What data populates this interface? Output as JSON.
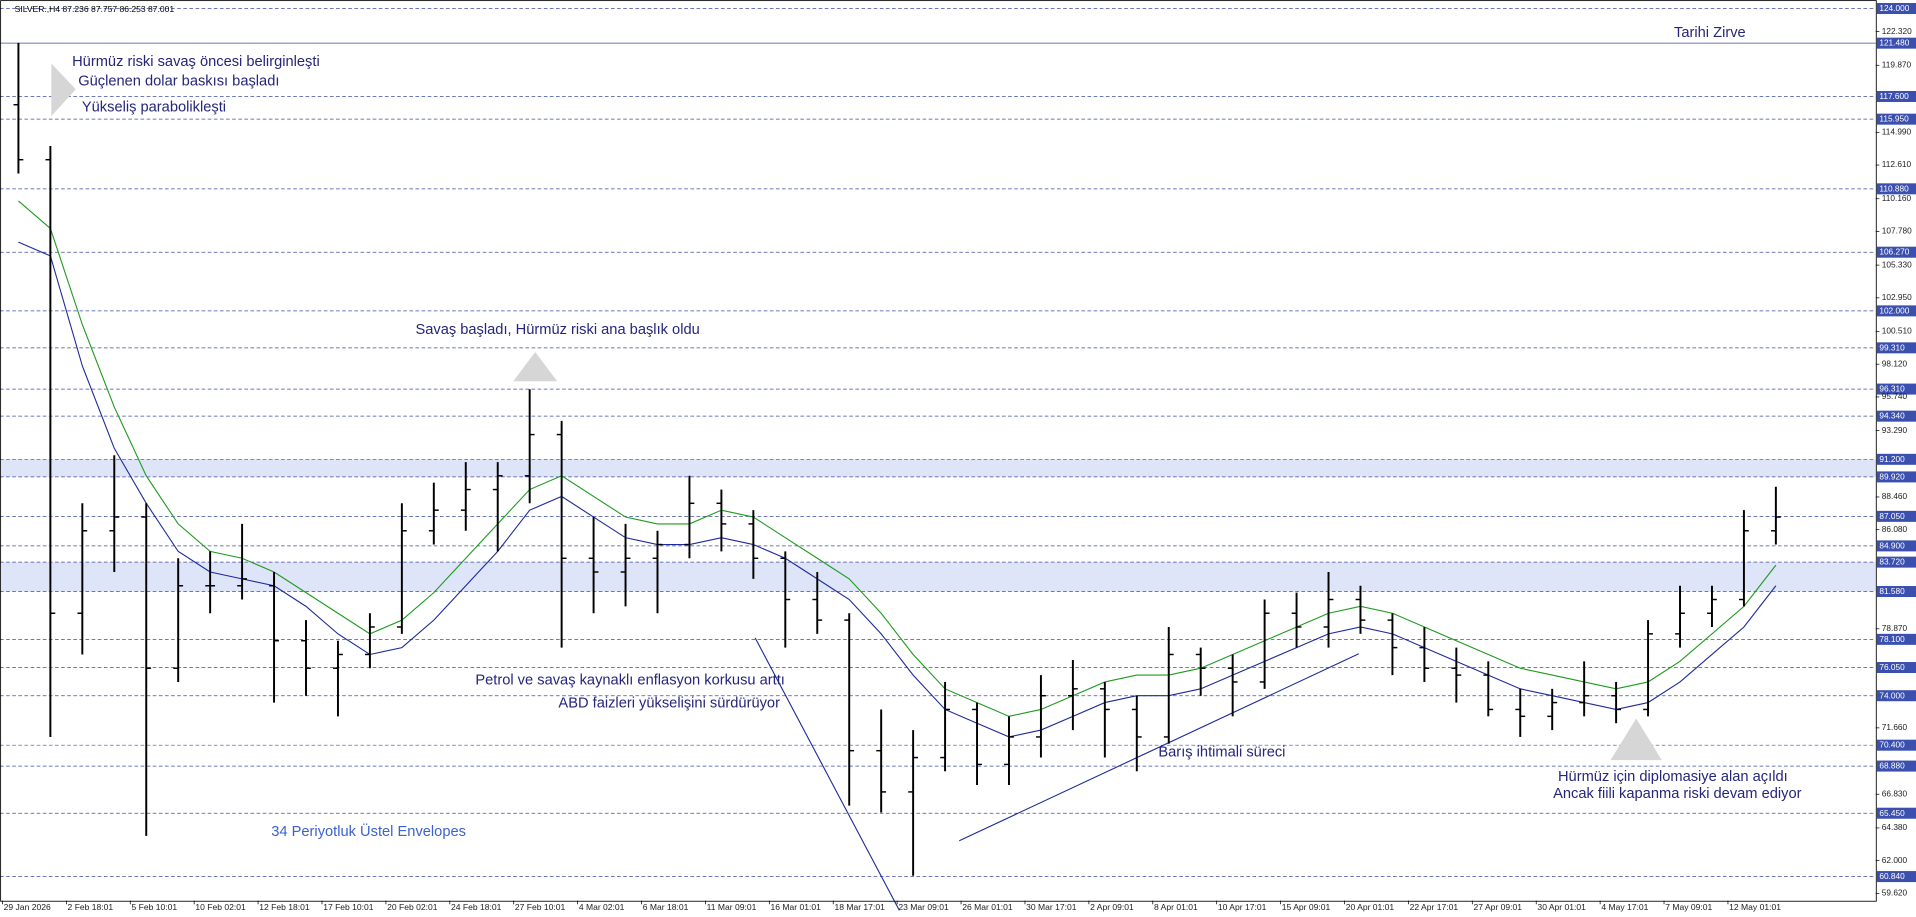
{
  "chart_data": {
    "type": "ohlc",
    "header": "SILVER.,H4  87.236 87.757 86.253 87.001",
    "ylim": [
      59.09,
      124.62
    ],
    "yticks": [
      {
        "value": 122.32,
        "label": "122.320"
      },
      {
        "value": 119.87,
        "label": "119.870"
      },
      {
        "value": 114.99,
        "label": "114.990"
      },
      {
        "value": 112.61,
        "label": "112.610"
      },
      {
        "value": 110.16,
        "label": "110.160"
      },
      {
        "value": 107.78,
        "label": "107.780"
      },
      {
        "value": 105.33,
        "label": "105.330"
      },
      {
        "value": 102.95,
        "label": "102.950"
      },
      {
        "value": 100.51,
        "label": "100.510"
      },
      {
        "value": 98.12,
        "label": "98.120"
      },
      {
        "value": 95.74,
        "label": "95.740"
      },
      {
        "value": 93.29,
        "label": "93.290"
      },
      {
        "value": 88.46,
        "label": "88.460"
      },
      {
        "value": 86.08,
        "label": "86.080"
      },
      {
        "value": 78.87,
        "label": "78.870"
      },
      {
        "value": 71.66,
        "label": "71.660"
      },
      {
        "value": 66.83,
        "label": "66.830"
      },
      {
        "value": 64.38,
        "label": "64.380"
      },
      {
        "value": 62,
        "label": "62.000"
      },
      {
        "value": 59.62,
        "label": "59.620"
      }
    ],
    "levels": [
      {
        "value": 124,
        "label": "124.000"
      },
      {
        "value": 121.48,
        "label": "121.480",
        "line": "solid"
      },
      {
        "value": 117.6,
        "label": "117.600"
      },
      {
        "value": 115.95,
        "label": "115.950"
      },
      {
        "value": 110.88,
        "label": "110.880"
      },
      {
        "value": 106.27,
        "label": "106.270"
      },
      {
        "value": 102,
        "label": "102.000"
      },
      {
        "value": 99.31,
        "label": "99.310"
      },
      {
        "value": 96.31,
        "label": "96.310"
      },
      {
        "value": 94.34,
        "label": "94.340"
      },
      {
        "value": 91.2,
        "label": "91.200"
      },
      {
        "value": 89.92,
        "label": "89.920"
      },
      {
        "value": 87.05,
        "label": "87.050"
      },
      {
        "value": 84.9,
        "label": "84.900"
      },
      {
        "value": 83.72,
        "label": "83.720"
      },
      {
        "value": 81.58,
        "label": "81.580"
      },
      {
        "value": 78.1,
        "label": "78.100"
      },
      {
        "value": 76.05,
        "label": "76.050"
      },
      {
        "value": 74,
        "label": "74.000"
      },
      {
        "value": 70.4,
        "label": "70.400"
      },
      {
        "value": 68.88,
        "label": "68.880"
      },
      {
        "value": 65.45,
        "label": "65.450"
      },
      {
        "value": 60.84,
        "label": "60.840"
      }
    ],
    "zones": [
      {
        "from": 89.92,
        "to": 91.2
      },
      {
        "from": 81.58,
        "to": 83.72
      }
    ],
    "x_labels": [
      "29 Jan 2026",
      "2 Feb 18:01",
      "5 Feb 10:01",
      "10 Feb 02:01",
      "12 Feb 18:01",
      "17 Feb 10:01",
      "20 Feb 02:01",
      "24 Feb 18:01",
      "27 Feb 10:01",
      "4 Mar 02:01",
      "6 Mar 18:01",
      "11 Mar 09:01",
      "16 Mar 01:01",
      "18 Mar 17:01",
      "23 Mar 09:01",
      "26 Mar 01:01",
      "30 Mar 17:01",
      "2 Apr 09:01",
      "8 Apr 01:01",
      "10 Apr 17:01",
      "15 Apr 09:01",
      "20 Apr 01:01",
      "22 Apr 17:01",
      "27 Apr 09:01",
      "30 Apr 01:01",
      "4 May 17:01",
      "7 May 09:01",
      "12 May 01:01"
    ],
    "color": "#000000",
    "open": [
      117,
      113,
      80,
      86,
      87,
      76,
      82,
      82,
      82,
      78,
      76,
      77,
      79,
      86,
      87.5,
      89,
      90,
      93,
      84,
      83,
      84,
      85,
      88,
      86.5,
      84,
      81,
      79.5,
      70,
      67,
      69.5,
      73,
      69,
      71,
      74,
      74.5,
      73,
      71,
      77,
      76,
      75,
      80,
      79,
      81,
      79.5,
      77.5,
      76,
      75.5,
      73,
      72.5,
      73.5,
      74,
      73,
      78.5,
      80,
      81,
      86
    ],
    "high": [
      121.5,
      114,
      88,
      91.5,
      88,
      84,
      84.5,
      86.5,
      83,
      79.5,
      78,
      80,
      88,
      89.5,
      91,
      91,
      96.3,
      94,
      87,
      86.5,
      86,
      90,
      89,
      87.5,
      84.5,
      83,
      80,
      73,
      71.5,
      75,
      73.5,
      72.5,
      75.5,
      76.6,
      75,
      74,
      79,
      77.5,
      77,
      81,
      81.5,
      83,
      82,
      80,
      79,
      77.5,
      76.5,
      74.5,
      74.5,
      76.5,
      75,
      79.5,
      82,
      82,
      87.5,
      89.2
    ],
    "low": [
      112,
      71,
      77,
      83,
      63.8,
      75,
      80,
      81,
      73.5,
      74,
      72.5,
      76,
      78.5,
      85,
      86,
      84.5,
      88,
      77.5,
      80,
      80.5,
      80,
      84,
      84.5,
      82.5,
      77.5,
      78.5,
      66,
      65.5,
      60.9,
      68.5,
      67.5,
      67.5,
      69.5,
      71.5,
      69.5,
      68.5,
      70.5,
      74,
      72.5,
      74.5,
      77.5,
      77.5,
      78.5,
      75.5,
      75,
      73.5,
      72.5,
      71,
      71.5,
      72.5,
      72,
      72.5,
      77.5,
      79,
      80.5,
      85
    ],
    "close": [
      113,
      80,
      86,
      87,
      76,
      82,
      82,
      82.5,
      78,
      76,
      77,
      79,
      86,
      87.5,
      89,
      90,
      93,
      84,
      83,
      84,
      85,
      88,
      86.5,
      84,
      81,
      79.5,
      70,
      67,
      69.5,
      73,
      69,
      71,
      74,
      74.5,
      73,
      71,
      77,
      76,
      75,
      80,
      79,
      81,
      79.5,
      77.5,
      76,
      75.5,
      73,
      72.5,
      73.5,
      74,
      73,
      78.5,
      80,
      81,
      86,
      87
    ],
    "lines": [
      {
        "color": "#1e9a1e",
        "values": [
          110,
          108,
          101,
          95,
          90,
          86.5,
          84.5,
          84,
          83,
          81.5,
          80,
          78.5,
          79.5,
          81.5,
          84,
          86.5,
          89,
          90,
          88.5,
          87,
          86.5,
          86.5,
          87.5,
          87,
          85.5,
          84,
          82.5,
          80,
          77,
          74.5,
          73.5,
          72.5,
          73,
          74,
          75,
          75.5,
          75.5,
          76,
          77,
          78,
          79,
          80,
          80.5,
          80,
          79,
          78,
          77,
          76,
          75.5,
          75,
          74.5,
          75,
          76.5,
          78.5,
          80.5,
          83.5
        ]
      },
      {
        "color": "#1c2a9c",
        "values": [
          107,
          106,
          98,
          92,
          88,
          84.5,
          83,
          82.5,
          82,
          80.5,
          78.5,
          77,
          77.5,
          79.5,
          82,
          84.5,
          87.5,
          88.5,
          87,
          85.5,
          85,
          85,
          85.5,
          85,
          84,
          82.5,
          81,
          78.5,
          75.5,
          73,
          72,
          71,
          71.5,
          72.5,
          73.5,
          74,
          74,
          74.5,
          75.5,
          76.5,
          77.5,
          78.5,
          79,
          78.5,
          77.5,
          76.5,
          75.5,
          74.5,
          74,
          73.5,
          73,
          73.5,
          75,
          77,
          79,
          82
        ]
      }
    ],
    "annotations": [
      {
        "text": "Tarihi Zirve",
        "color": "#25257a"
      },
      {
        "text": "Hürmüz riski savaş öncesi belirginleşti",
        "color": "#25257a"
      },
      {
        "text": "Güçlenen dolar baskısı başladı",
        "color": "#25257a"
      },
      {
        "text": "Yükseliş parabolikleşti",
        "color": "#25257a"
      },
      {
        "text": "Savaş başladı, Hürmüz riski ana başlık oldu",
        "color": "#25257a"
      },
      {
        "text": "Petrol ve savaş kaynaklı enflasyon korkusu arttı",
        "color": "#25257a"
      },
      {
        "text": "ABD faizleri yükselişini sürdürüyor",
        "color": "#25257a"
      },
      {
        "text": "Barış ihtimali süreci",
        "color": "#25257a"
      },
      {
        "text": "Hürmüz için diplomasiye alan açıldı",
        "color": "#25257a"
      },
      {
        "text": "Ancak fiili kapanma riski devam ediyor",
        "color": "#25257a"
      },
      {
        "text": "34 Periyotluk Üstel Envelopes",
        "color": "#3a62d0"
      }
    ]
  }
}
